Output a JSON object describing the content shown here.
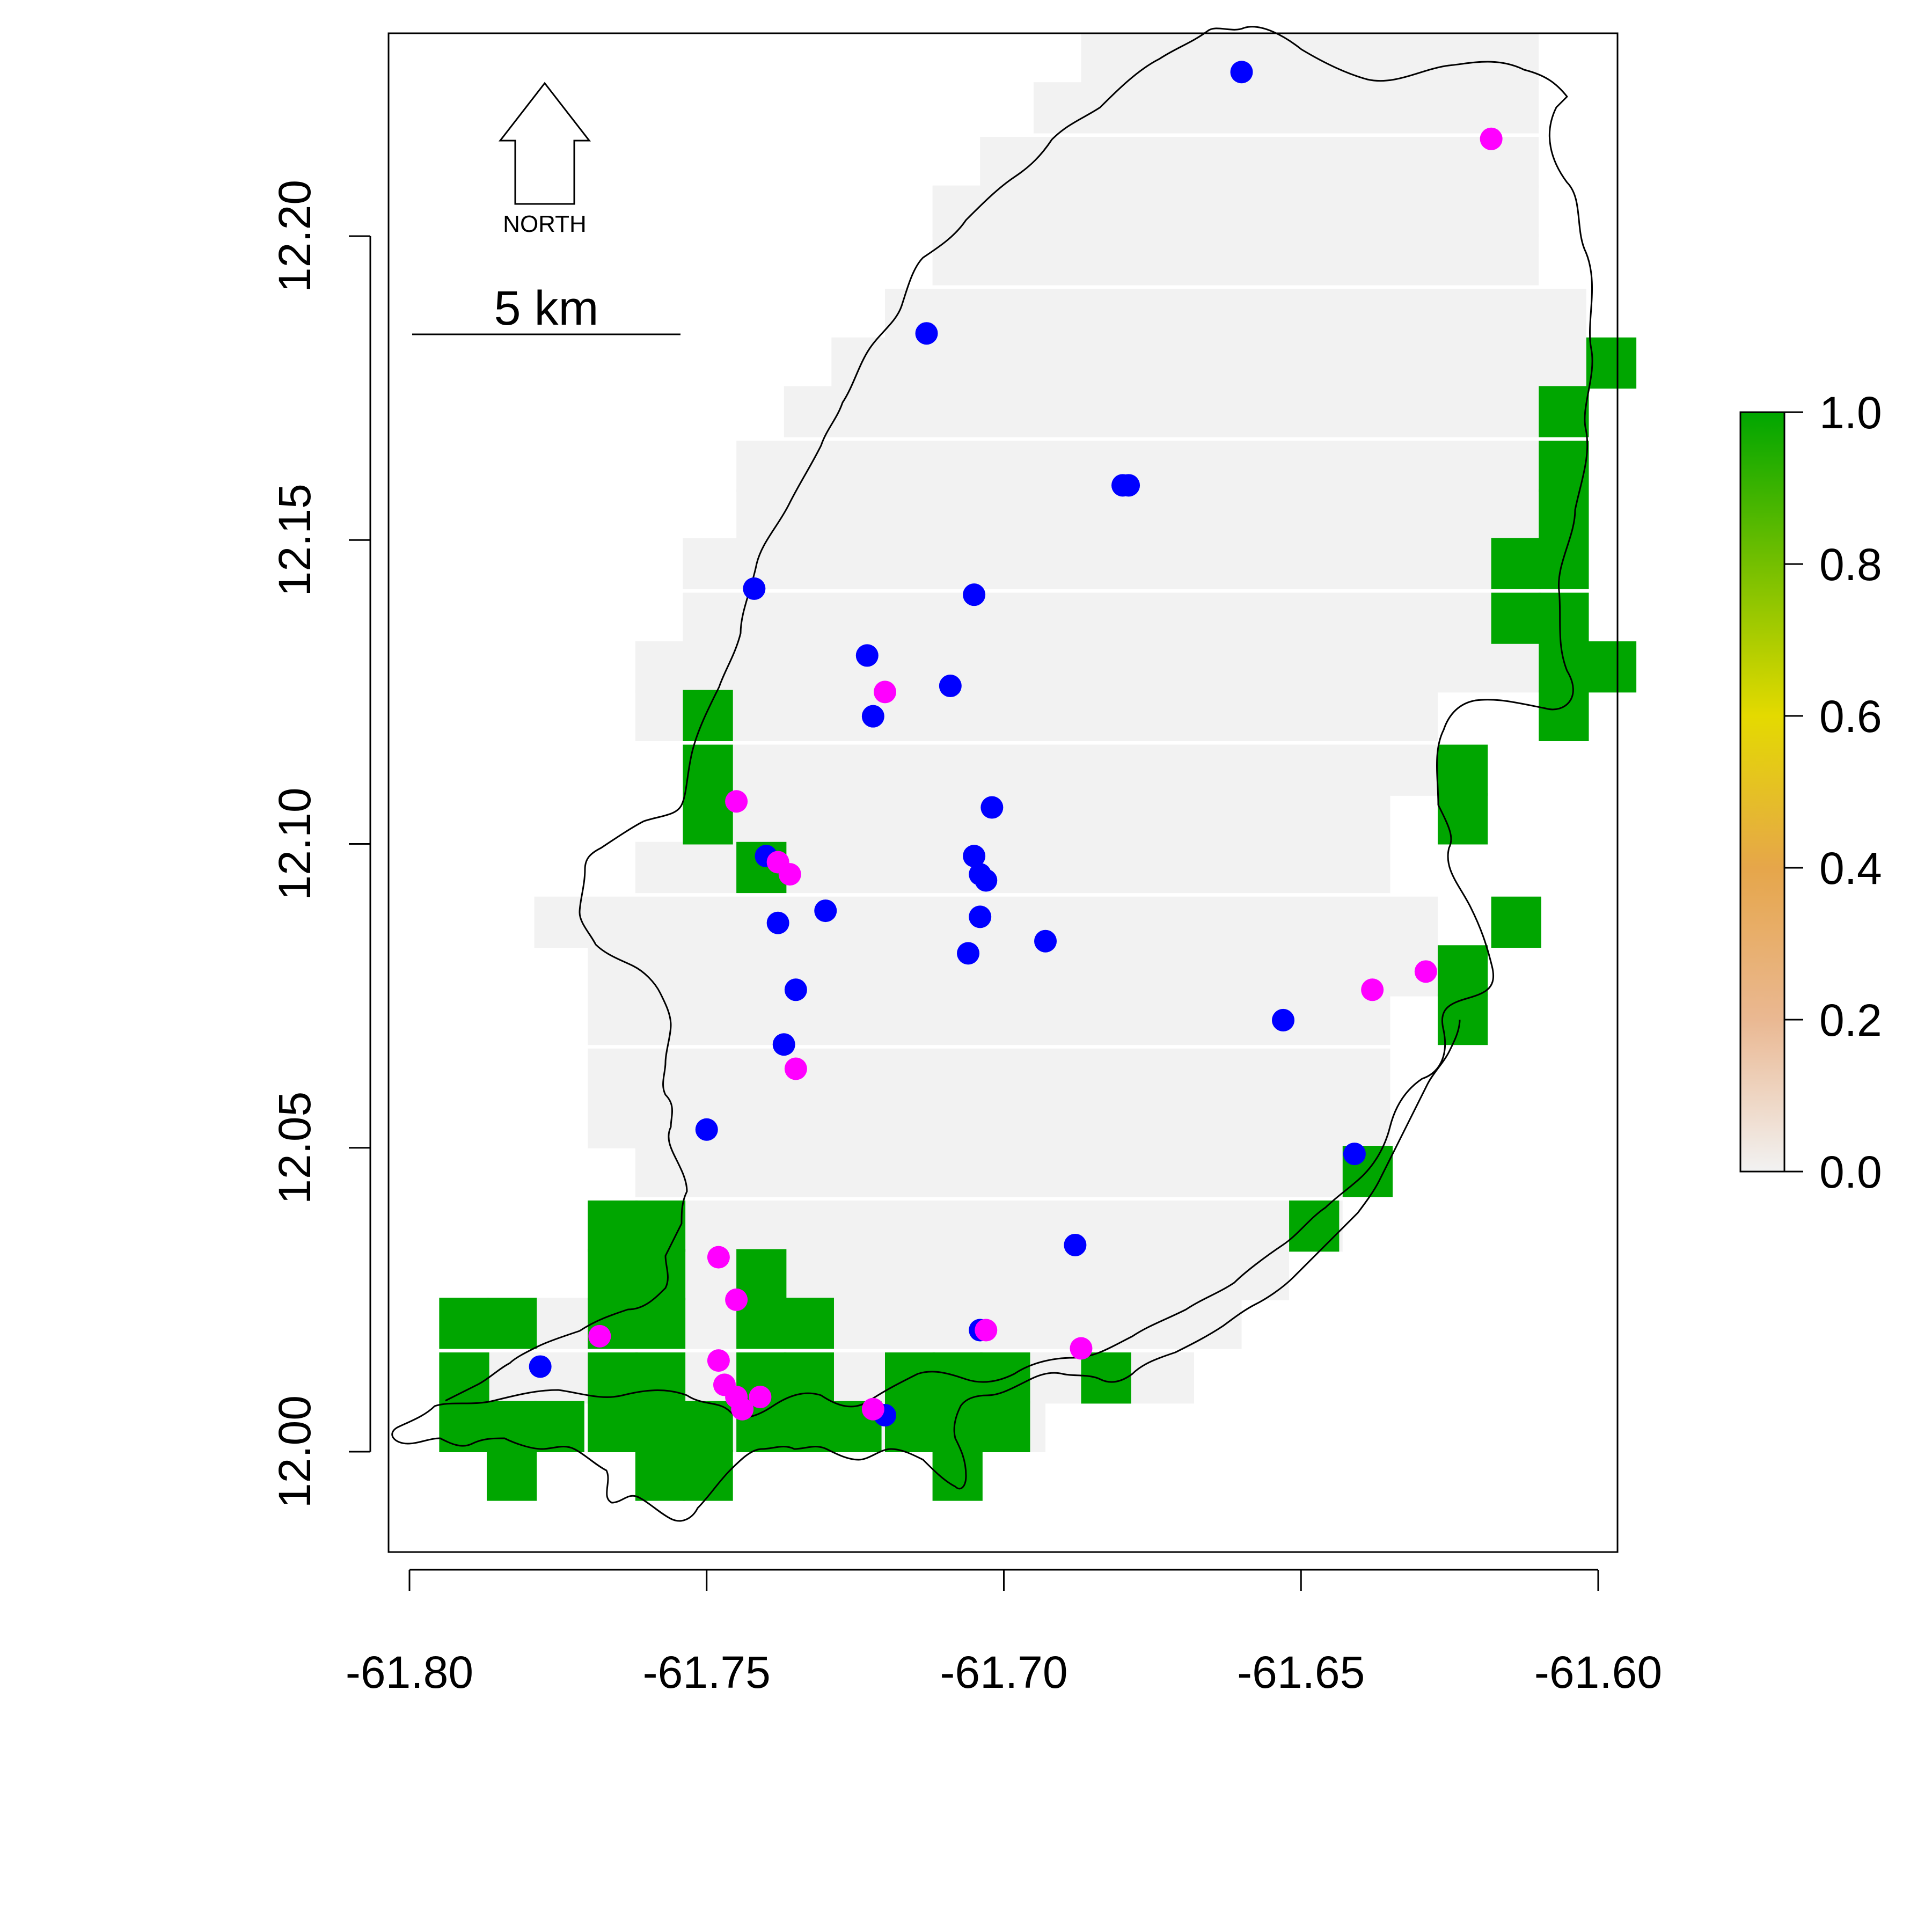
{
  "map": {
    "x_ticks": [
      "-61.80",
      "-61.75",
      "-61.70",
      "-61.65",
      "-61.60"
    ],
    "y_ticks": [
      "12.00",
      "12.05",
      "12.10",
      "12.15",
      "12.20"
    ],
    "north_label": "NORTH",
    "scale_label": "5 km",
    "legend": {
      "ticks": [
        "0.0",
        "0.2",
        "0.4",
        "0.6",
        "0.8",
        "1.0"
      ],
      "colors": [
        "#F2F2F2",
        "#EAB892",
        "#E6A64A",
        "#E4DA00",
        "#74BF00",
        "#00A600"
      ]
    },
    "colors": {
      "grid_background": "#F2F2F2",
      "grid_high": "#00A600",
      "blue_points": "#0000FF",
      "magenta_points": "#FF00FF",
      "outline": "#000000"
    }
  },
  "chart_data": {
    "type": "scatter",
    "xlim": [
      -61.8,
      -61.6
    ],
    "ylim": [
      11.99,
      12.23
    ],
    "cell_size": 0.00833,
    "grid_gray_rows": [
      {
        "y": 12.225,
        "cols": [
          [
            -61.687,
            -61.61
          ]
        ]
      },
      {
        "y": 12.217,
        "cols": [
          [
            -61.695,
            -61.61
          ]
        ]
      },
      {
        "y": 12.208,
        "cols": [
          [
            -61.704,
            -61.61
          ]
        ]
      },
      {
        "y": 12.2,
        "cols": [
          [
            -61.712,
            -61.61
          ]
        ]
      },
      {
        "y": 12.192,
        "cols": [
          [
            -61.712,
            -61.61
          ]
        ]
      },
      {
        "y": 12.183,
        "cols": [
          [
            -61.72,
            -61.602
          ]
        ]
      },
      {
        "y": 12.175,
        "cols": [
          [
            -61.729,
            -61.602
          ]
        ]
      },
      {
        "y": 12.167,
        "cols": [
          [
            -61.737,
            -61.602
          ]
        ]
      },
      {
        "y": 12.158,
        "cols": [
          [
            -61.745,
            -61.61
          ]
        ]
      },
      {
        "y": 12.15,
        "cols": [
          [
            -61.745,
            -61.61
          ]
        ]
      },
      {
        "y": 12.142,
        "cols": [
          [
            -61.754,
            -61.618
          ]
        ]
      },
      {
        "y": 12.133,
        "cols": [
          [
            -61.754,
            -61.618
          ]
        ]
      },
      {
        "y": 12.125,
        "cols": [
          [
            -61.762,
            -61.61
          ]
        ]
      },
      {
        "y": 12.117,
        "cols": [
          [
            -61.762,
            -61.627
          ]
        ]
      },
      {
        "y": 12.108,
        "cols": [
          [
            -61.754,
            -61.627
          ]
        ]
      },
      {
        "y": 12.1,
        "cols": [
          [
            -61.754,
            -61.635
          ]
        ]
      },
      {
        "y": 12.092,
        "cols": [
          [
            -61.762,
            -61.635
          ]
        ]
      },
      {
        "y": 12.083,
        "cols": [
          [
            -61.779,
            -61.627
          ]
        ]
      },
      {
        "y": 12.075,
        "cols": [
          [
            -61.77,
            -61.627
          ]
        ]
      },
      {
        "y": 12.067,
        "cols": [
          [
            -61.77,
            -61.635
          ]
        ]
      },
      {
        "y": 12.058,
        "cols": [
          [
            -61.77,
            -61.635
          ]
        ]
      },
      {
        "y": 12.05,
        "cols": [
          [
            -61.77,
            -61.635
          ]
        ]
      },
      {
        "y": 12.042,
        "cols": [
          [
            -61.762,
            -61.635
          ]
        ]
      },
      {
        "y": 12.033,
        "cols": [
          [
            -61.77,
            -61.643
          ]
        ]
      },
      {
        "y": 12.025,
        "cols": [
          [
            -61.754,
            -61.652
          ]
        ]
      },
      {
        "y": 12.017,
        "cols": [
          [
            -61.779,
            -61.66
          ]
        ]
      },
      {
        "y": 12.008,
        "cols": [
          [
            -61.787,
            -61.668
          ]
        ]
      },
      {
        "y": 12.0,
        "cols": [
          [
            -61.762,
            -61.693
          ]
        ]
      }
    ],
    "grid_green_cells": [
      [
        -61.602,
        12.175
      ],
      [
        -61.61,
        12.167
      ],
      [
        -61.61,
        12.158
      ],
      [
        -61.61,
        12.15
      ],
      [
        -61.618,
        12.142
      ],
      [
        -61.61,
        12.142
      ],
      [
        -61.618,
        12.133
      ],
      [
        -61.61,
        12.133
      ],
      [
        -61.61,
        12.125
      ],
      [
        -61.602,
        12.125
      ],
      [
        -61.61,
        12.117
      ],
      [
        -61.754,
        12.117
      ],
      [
        -61.754,
        12.108
      ],
      [
        -61.754,
        12.1
      ],
      [
        -61.745,
        12.092
      ],
      [
        -61.627,
        12.108
      ],
      [
        -61.627,
        12.1
      ],
      [
        -61.618,
        12.083
      ],
      [
        -61.627,
        12.075
      ],
      [
        -61.627,
        12.067
      ],
      [
        -61.643,
        12.042
      ],
      [
        -61.652,
        12.033
      ],
      [
        -61.77,
        12.033
      ],
      [
        -61.762,
        12.033
      ],
      [
        -61.77,
        12.025
      ],
      [
        -61.762,
        12.025
      ],
      [
        -61.745,
        12.025
      ],
      [
        -61.795,
        12.017
      ],
      [
        -61.787,
        12.017
      ],
      [
        -61.77,
        12.017
      ],
      [
        -61.762,
        12.017
      ],
      [
        -61.745,
        12.017
      ],
      [
        -61.737,
        12.017
      ],
      [
        -61.795,
        12.008
      ],
      [
        -61.77,
        12.008
      ],
      [
        -61.762,
        12.008
      ],
      [
        -61.745,
        12.008
      ],
      [
        -61.737,
        12.008
      ],
      [
        -61.72,
        12.008
      ],
      [
        -61.712,
        12.008
      ],
      [
        -61.704,
        12.008
      ],
      [
        -61.795,
        12.0
      ],
      [
        -61.787,
        12.0
      ],
      [
        -61.779,
        12.0
      ],
      [
        -61.77,
        12.0
      ],
      [
        -61.762,
        12.0
      ],
      [
        -61.754,
        12.0
      ],
      [
        -61.745,
        12.0
      ],
      [
        -61.737,
        12.0
      ],
      [
        -61.729,
        12.0
      ],
      [
        -61.72,
        12.0
      ],
      [
        -61.712,
        12.0
      ],
      [
        -61.704,
        12.0
      ],
      [
        -61.787,
        11.992
      ],
      [
        -61.762,
        11.992
      ],
      [
        -61.754,
        11.992
      ],
      [
        -61.712,
        11.992
      ],
      [
        -61.687,
        12.008
      ]
    ],
    "blue_points": [
      [
        -61.66,
        12.227
      ],
      [
        -61.713,
        12.184
      ],
      [
        -61.68,
        12.159
      ],
      [
        -61.679,
        12.159
      ],
      [
        -61.742,
        12.142
      ],
      [
        -61.705,
        12.141
      ],
      [
        -61.723,
        12.131
      ],
      [
        -61.709,
        12.126
      ],
      [
        -61.722,
        12.121
      ],
      [
        -61.702,
        12.106
      ],
      [
        -61.74,
        12.098
      ],
      [
        -61.705,
        12.098
      ],
      [
        -61.704,
        12.095
      ],
      [
        -61.703,
        12.094
      ],
      [
        -61.738,
        12.087
      ],
      [
        -61.73,
        12.089
      ],
      [
        -61.704,
        12.088
      ],
      [
        -61.706,
        12.082
      ],
      [
        -61.693,
        12.084
      ],
      [
        -61.735,
        12.076
      ],
      [
        -61.653,
        12.071
      ],
      [
        -61.737,
        12.067
      ],
      [
        -61.75,
        12.053
      ],
      [
        -61.641,
        12.049
      ],
      [
        -61.688,
        12.034
      ],
      [
        -61.704,
        12.02
      ],
      [
        -61.778,
        12.014
      ],
      [
        -61.72,
        12.006
      ]
    ],
    "magenta_points": [
      [
        -61.618,
        12.216
      ],
      [
        -61.72,
        12.125
      ],
      [
        -61.745,
        12.107
      ],
      [
        -61.738,
        12.097
      ],
      [
        -61.736,
        12.095
      ],
      [
        -61.629,
        12.079
      ],
      [
        -61.638,
        12.076
      ],
      [
        -61.735,
        12.063
      ],
      [
        -61.748,
        12.032
      ],
      [
        -61.745,
        12.025
      ],
      [
        -61.768,
        12.019
      ],
      [
        -61.703,
        12.02
      ],
      [
        -61.687,
        12.017
      ],
      [
        -61.748,
        12.015
      ],
      [
        -61.747,
        12.011
      ],
      [
        -61.745,
        12.009
      ],
      [
        -61.741,
        12.009
      ],
      [
        -61.744,
        12.007
      ],
      [
        -61.722,
        12.007
      ]
    ]
  }
}
